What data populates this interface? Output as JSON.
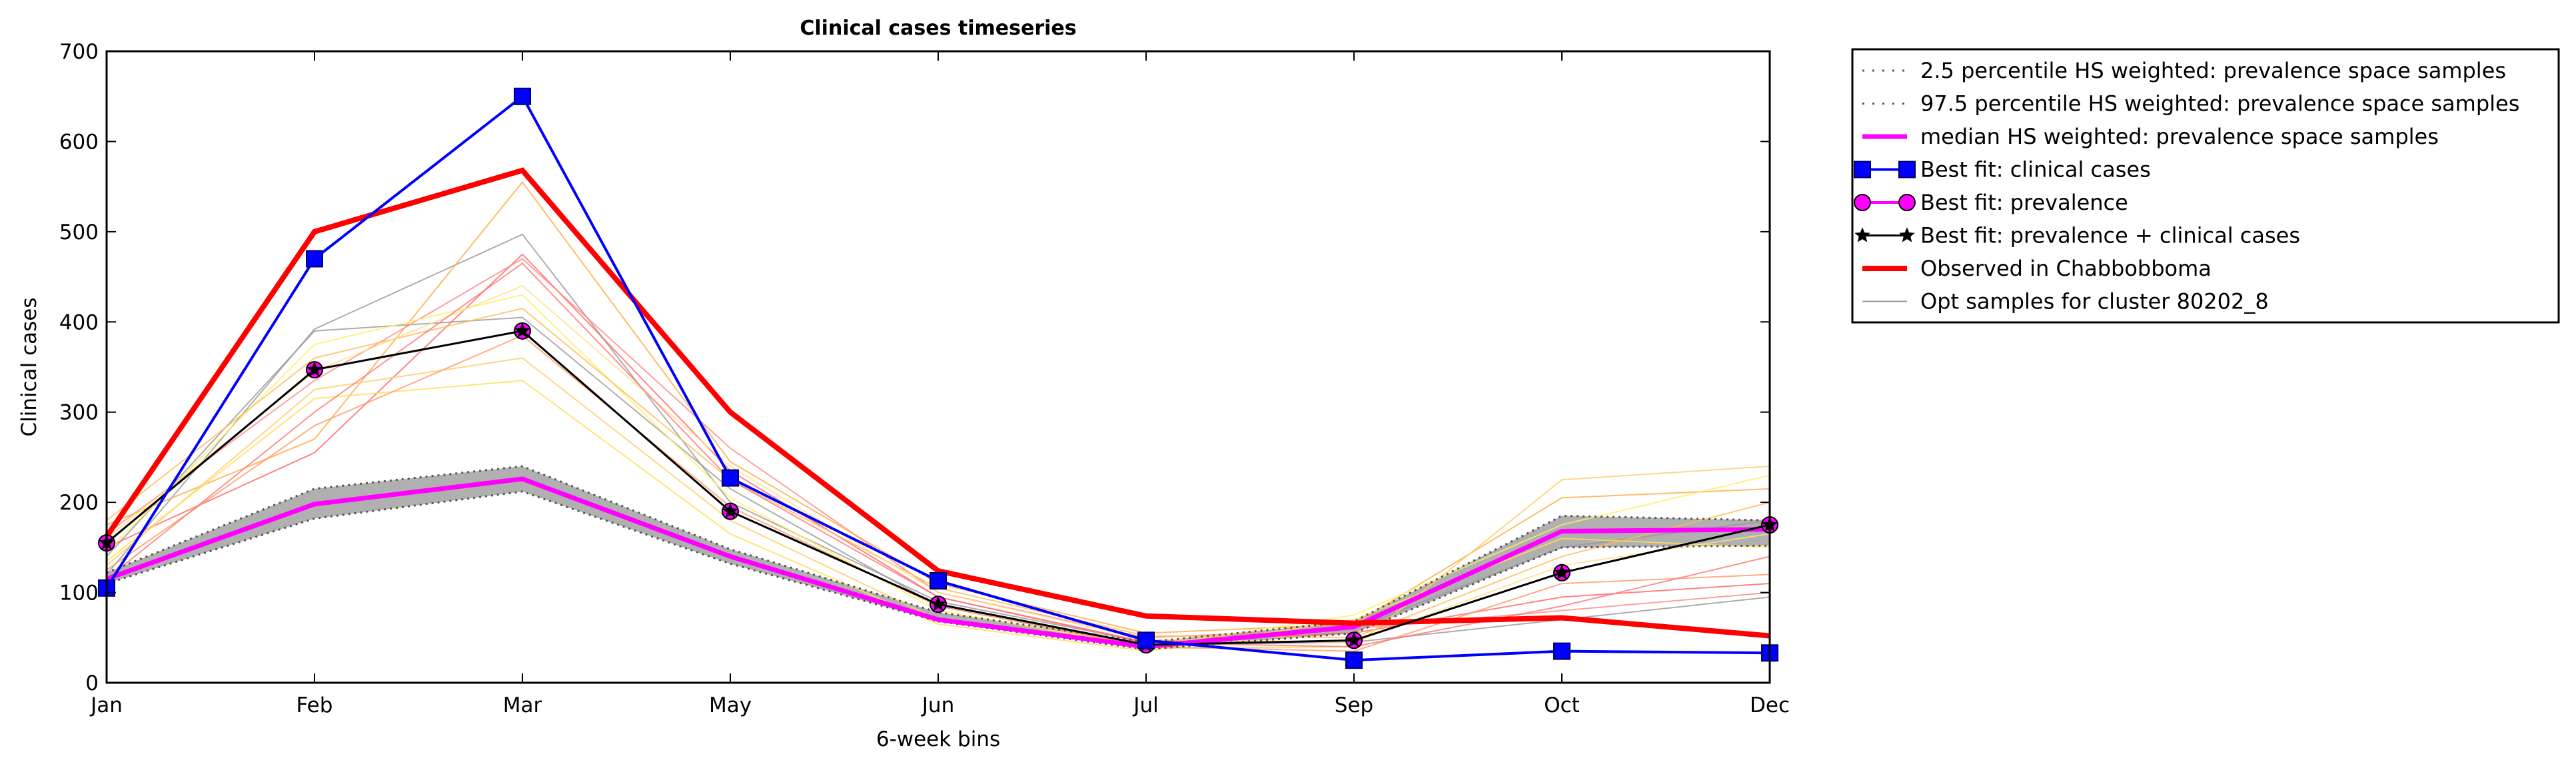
{
  "chart_data": {
    "type": "line",
    "title": "Clinical cases timeseries",
    "xlabel": "6-week bins",
    "ylabel": "Clinical cases",
    "categories": [
      "Jan",
      "Feb",
      "Mar",
      "May",
      "Jun",
      "Jul",
      "Sep",
      "Oct",
      "Dec"
    ],
    "ylim": [
      0,
      700
    ],
    "yticks": [
      0,
      100,
      200,
      300,
      400,
      500,
      600,
      700
    ],
    "grid": false,
    "legend_position": "outside-top-right",
    "series": [
      {
        "name": "2.5 percentile HS weighted: prevalence space samples",
        "style": "dotted",
        "color": "#555555",
        "values": [
          110,
          182,
          212,
          132,
          68,
          37,
          55,
          150,
          152
        ]
      },
      {
        "name": "97.5 percentile HS weighted: prevalence space samples",
        "style": "dotted",
        "color": "#555555",
        "values": [
          122,
          215,
          240,
          148,
          78,
          45,
          68,
          185,
          180
        ]
      },
      {
        "name": "median HS weighted: prevalence space samples",
        "style": "solid",
        "color": "#ff00ff",
        "values": [
          115,
          198,
          226,
          140,
          70,
          40,
          62,
          168,
          170
        ]
      },
      {
        "name": "Best fit: clinical cases",
        "style": "line-square",
        "color": "#0000ff",
        "values": [
          105,
          470,
          650,
          227,
          113,
          47,
          25,
          35,
          33
        ]
      },
      {
        "name": "Best fit: prevalence",
        "style": "line-circle",
        "color": "#ff00ff",
        "values": [
          155,
          347,
          390,
          190,
          87,
          42,
          47,
          122,
          175
        ]
      },
      {
        "name": "Best fit: prevalence + clinical cases",
        "style": "line-star",
        "color": "#000000",
        "values": [
          155,
          347,
          390,
          190,
          87,
          42,
          47,
          122,
          175
        ]
      },
      {
        "name": "Observed in Chabbobboma",
        "style": "solid-thick",
        "color": "#ff0000",
        "values": [
          162,
          500,
          568,
          300,
          124,
          74,
          66,
          72,
          52
        ]
      },
      {
        "name": "Opt samples for cluster 80202_8",
        "style": "solid-thin",
        "color": "#999999",
        "values": [
          120,
          392,
          497,
          200,
          90,
          45,
          60,
          150,
          180
        ]
      }
    ],
    "opt_samples": [
      {
        "color": "#999999",
        "values": [
          120,
          392,
          497,
          200,
          90,
          45,
          60,
          150,
          180
        ]
      },
      {
        "color": "#999999",
        "values": [
          140,
          390,
          405,
          215,
          85,
          42,
          45,
          70,
          95
        ]
      },
      {
        "color": "#ff6666",
        "values": [
          150,
          255,
          475,
          235,
          95,
          45,
          55,
          95,
          110
        ]
      },
      {
        "color": "#ff8888",
        "values": [
          165,
          335,
          470,
          260,
          100,
          50,
          60,
          80,
          100
        ]
      },
      {
        "color": "#ffaa44",
        "values": [
          175,
          270,
          555,
          245,
          110,
          55,
          65,
          205,
          215
        ]
      },
      {
        "color": "#ffcc66",
        "values": [
          130,
          325,
          360,
          180,
          70,
          38,
          40,
          225,
          240
        ]
      },
      {
        "color": "#ffee66",
        "values": [
          145,
          375,
          430,
          205,
          80,
          40,
          75,
          175,
          230
        ]
      },
      {
        "color": "#ffdd55",
        "values": [
          135,
          315,
          335,
          165,
          65,
          35,
          70,
          160,
          150
        ]
      },
      {
        "color": "#ffbb55",
        "values": [
          180,
          360,
          415,
          225,
          105,
          52,
          50,
          140,
          200
        ]
      },
      {
        "color": "#ff9966",
        "values": [
          125,
          285,
          385,
          195,
          85,
          40,
          35,
          110,
          120
        ]
      },
      {
        "color": "#ffe088",
        "values": [
          160,
          345,
          440,
          240,
          100,
          48,
          45,
          130,
          165
        ]
      },
      {
        "color": "#ff7777",
        "values": [
          115,
          300,
          465,
          225,
          95,
          44,
          40,
          85,
          140
        ]
      }
    ]
  }
}
